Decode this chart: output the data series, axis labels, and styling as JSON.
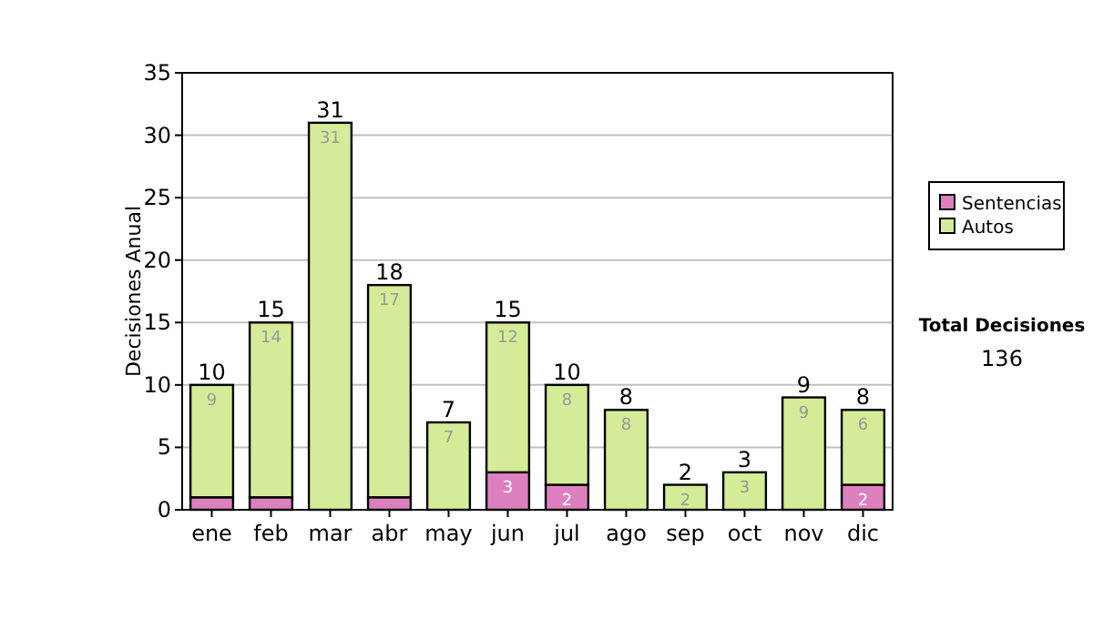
{
  "chart_data": {
    "type": "bar",
    "stacked": true,
    "ylabel": "Decisiones Anual",
    "categories": [
      "ene",
      "feb",
      "mar",
      "abr",
      "may",
      "jun",
      "jul",
      "ago",
      "sep",
      "oct",
      "nov",
      "dic"
    ],
    "series": [
      {
        "name": "Sentencias",
        "color": "#dd80c0",
        "values": [
          1,
          1,
          0,
          1,
          0,
          3,
          2,
          0,
          0,
          0,
          0,
          2
        ],
        "value_labels": [
          null,
          null,
          null,
          null,
          null,
          "3",
          "2",
          null,
          null,
          null,
          null,
          "2"
        ]
      },
      {
        "name": "Autos",
        "color": "#d4ec98",
        "values": [
          9,
          14,
          31,
          17,
          7,
          12,
          8,
          8,
          2,
          3,
          9,
          6
        ],
        "value_labels": [
          "9",
          "14",
          "31",
          "17",
          "7",
          "12",
          "8",
          "8",
          "2",
          "3",
          "9",
          "6"
        ]
      }
    ],
    "totals": [
      "10",
      "15",
      "31",
      "18",
      "7",
      "15",
      "10",
      "8",
      "2",
      "3",
      "9",
      "8"
    ],
    "ylim": [
      0,
      35
    ],
    "yticks": [
      0,
      5,
      10,
      15,
      20,
      25,
      30,
      35
    ],
    "grid": "y",
    "legend": "right",
    "annotations": [
      "Total Decisiones",
      "136"
    ]
  }
}
